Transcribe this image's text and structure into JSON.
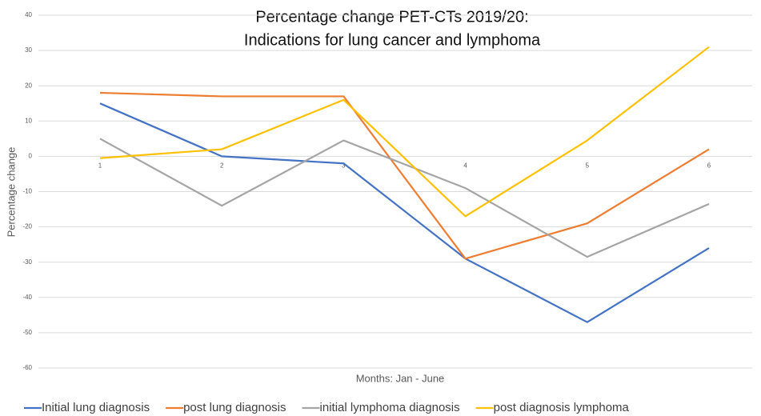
{
  "chart_data": {
    "type": "line",
    "title": [
      "Percentage change PET-CTs 2019/20:",
      "Indications for lung cancer  and lymphoma"
    ],
    "x_label": "Months: Jan - June",
    "y_label": "Percentage change",
    "categories": [
      "1",
      "2",
      "3",
      "4",
      "5",
      "6"
    ],
    "series": [
      {
        "name": "Initial lung diagnosis",
        "color": "#4472c4",
        "values": [
          15,
          0,
          -2,
          -29,
          -47,
          -26
        ]
      },
      {
        "name": "post lung diagnosis",
        "color": "#ed7d31",
        "values": [
          18,
          17,
          17,
          -29,
          -19,
          2
        ]
      },
      {
        "name": "initial lymphoma diagnosis",
        "color": "#a5a5a5",
        "values": [
          5,
          -14,
          4.5,
          -9,
          -28.5,
          -13.5
        ]
      },
      {
        "name": "post diagnosis lymphoma",
        "color": "#ffc000",
        "values": [
          -0.5,
          2,
          16,
          -17,
          4.5,
          31
        ]
      }
    ],
    "ylim": [
      -60,
      40
    ],
    "yticks": [
      -60,
      -50,
      -40,
      -30,
      -20,
      -10,
      0,
      10,
      20,
      30,
      40
    ],
    "grid": true,
    "legend": "bottom"
  }
}
